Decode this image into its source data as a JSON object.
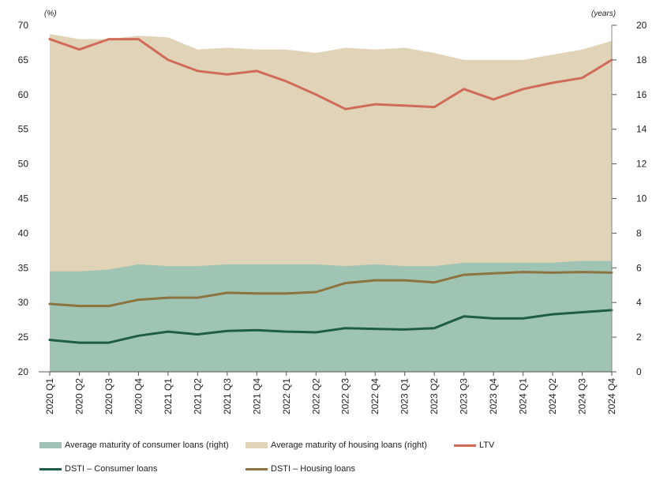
{
  "chart_data": {
    "type": "line",
    "left_axis": {
      "unit": "(%)",
      "range": [
        20,
        70
      ],
      "ticks": [
        20,
        25,
        30,
        35,
        40,
        45,
        50,
        55,
        60,
        65,
        70
      ]
    },
    "right_axis": {
      "unit": "(years)",
      "range": [
        0,
        20
      ],
      "ticks": [
        0,
        2,
        4,
        6,
        8,
        10,
        12,
        14,
        16,
        18,
        20
      ]
    },
    "categories": [
      "2020 Q1",
      "2020 Q2",
      "2020 Q3",
      "2020 Q4",
      "2021 Q1",
      "2021 Q2",
      "2021 Q3",
      "2021 Q4",
      "2022 Q1",
      "2022 Q2",
      "2022 Q3",
      "2022 Q4",
      "2023 Q1",
      "2023 Q2",
      "2023 Q3",
      "2023 Q4",
      "2024 Q1",
      "2024 Q2",
      "2024 Q3",
      "2024 Q4"
    ],
    "area_series": [
      {
        "name": "Average maturity of housing loans (right)",
        "axis": "right",
        "color": "#e0d3b7",
        "values": [
          19.5,
          19.2,
          19.2,
          19.4,
          19.3,
          18.6,
          18.7,
          18.6,
          18.6,
          18.4,
          18.7,
          18.6,
          18.7,
          18.4,
          18.0,
          18.0,
          18.0,
          18.3,
          18.6,
          19.1
        ]
      },
      {
        "name": "Average maturity of consumer loans (right)",
        "axis": "right",
        "color": "#a0c4b4",
        "values": [
          5.8,
          5.8,
          5.9,
          6.2,
          6.1,
          6.1,
          6.2,
          6.2,
          6.2,
          6.2,
          6.1,
          6.2,
          6.1,
          6.1,
          6.3,
          6.3,
          6.3,
          6.3,
          6.4,
          6.4
        ]
      }
    ],
    "line_series": [
      {
        "name": "LTV",
        "axis": "left",
        "color": "#d06b5a",
        "values": [
          68.0,
          66.5,
          68.0,
          68.0,
          65.0,
          63.4,
          62.9,
          63.4,
          61.9,
          60.0,
          57.9,
          58.6,
          58.4,
          58.2,
          60.8,
          59.3,
          60.8,
          61.7,
          62.4,
          65.0
        ]
      },
      {
        "name": "DSTI – Housing loans",
        "axis": "left",
        "color": "#8b7440",
        "values": [
          29.8,
          29.5,
          29.5,
          30.4,
          30.7,
          30.7,
          31.4,
          31.3,
          31.3,
          31.5,
          32.8,
          33.2,
          33.2,
          32.9,
          34.0,
          34.2,
          34.4,
          34.3,
          34.4,
          34.3
        ]
      },
      {
        "name": "DSTI – Consumer loans",
        "axis": "left",
        "color": "#1e5e44",
        "values": [
          24.6,
          24.2,
          24.2,
          25.2,
          25.8,
          25.4,
          25.9,
          26.0,
          25.8,
          25.7,
          26.3,
          26.2,
          26.1,
          26.3,
          28.0,
          27.7,
          27.7,
          28.3,
          28.6,
          28.9
        ]
      }
    ],
    "legend": [
      {
        "label": "Average maturity of consumer loans (right)",
        "kind": "area",
        "color": "#a0c4b4"
      },
      {
        "label": "Average maturity of housing loans (right)",
        "kind": "area",
        "color": "#e0d3b7"
      },
      {
        "label": "LTV",
        "kind": "line",
        "color": "#d06b5a"
      },
      {
        "label": "DSTI – Consumer loans",
        "kind": "line",
        "color": "#1e5e44"
      },
      {
        "label": "DSTI – Housing loans",
        "kind": "line",
        "color": "#8b7440"
      }
    ]
  }
}
